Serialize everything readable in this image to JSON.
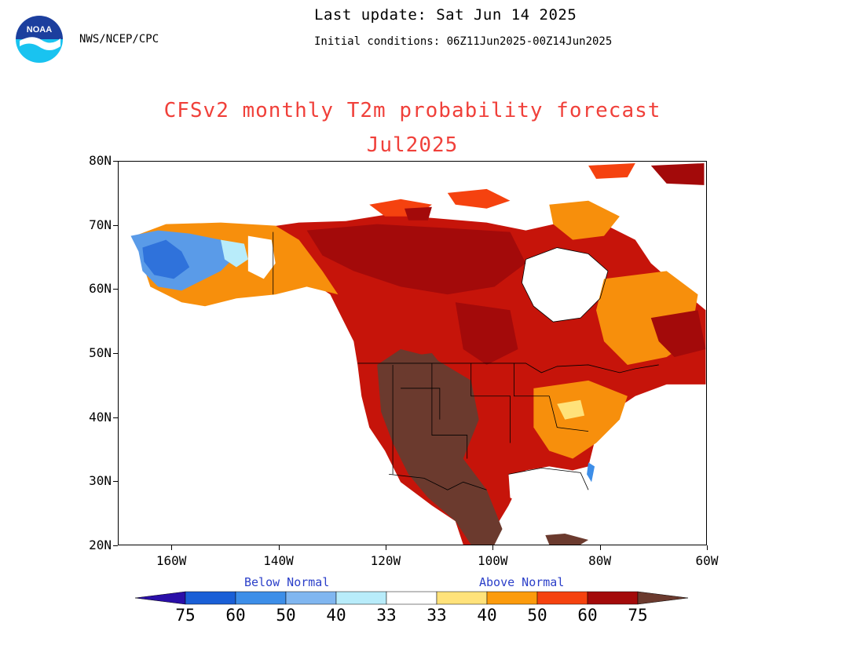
{
  "header": {
    "agency": "NWS/NCEP/CPC",
    "last_update": "Last update: Sat Jun 14 2025",
    "initial_conditions": "Initial conditions: 06Z11Jun2025-00Z14Jun2025",
    "logo_text": "NOAA"
  },
  "title": "CFSv2 monthly T2m probability forecast",
  "subtitle": "Jul2025",
  "map": {
    "lat_ticks": [
      "80N",
      "70N",
      "60N",
      "50N",
      "40N",
      "30N",
      "20N"
    ],
    "lon_ticks": [
      "160W",
      "140W",
      "120W",
      "100W",
      "80W",
      "60W"
    ],
    "lat_range": [
      20,
      80
    ],
    "lon_range": [
      -170,
      -60
    ]
  },
  "legend": {
    "below_label": "Below Normal",
    "above_label": "Above Normal",
    "labels": [
      "75",
      "60",
      "50",
      "40",
      "33",
      "33",
      "40",
      "50",
      "60",
      "75"
    ],
    "colors": {
      "below_75": "#2a0fa8",
      "below_60_75": "#1a5fd6",
      "below_50_60": "#3d8ee8",
      "below_40_50": "#80b6f0",
      "below_33_40": "#b8ecfa",
      "near_normal": "#ffffff",
      "above_33_40": "#ffe27a",
      "above_40_50": "#fc9b0c",
      "above_50_60": "#f5420f",
      "above_60_75": "#a30a0a",
      "above_75": "#6b3a2e"
    }
  }
}
